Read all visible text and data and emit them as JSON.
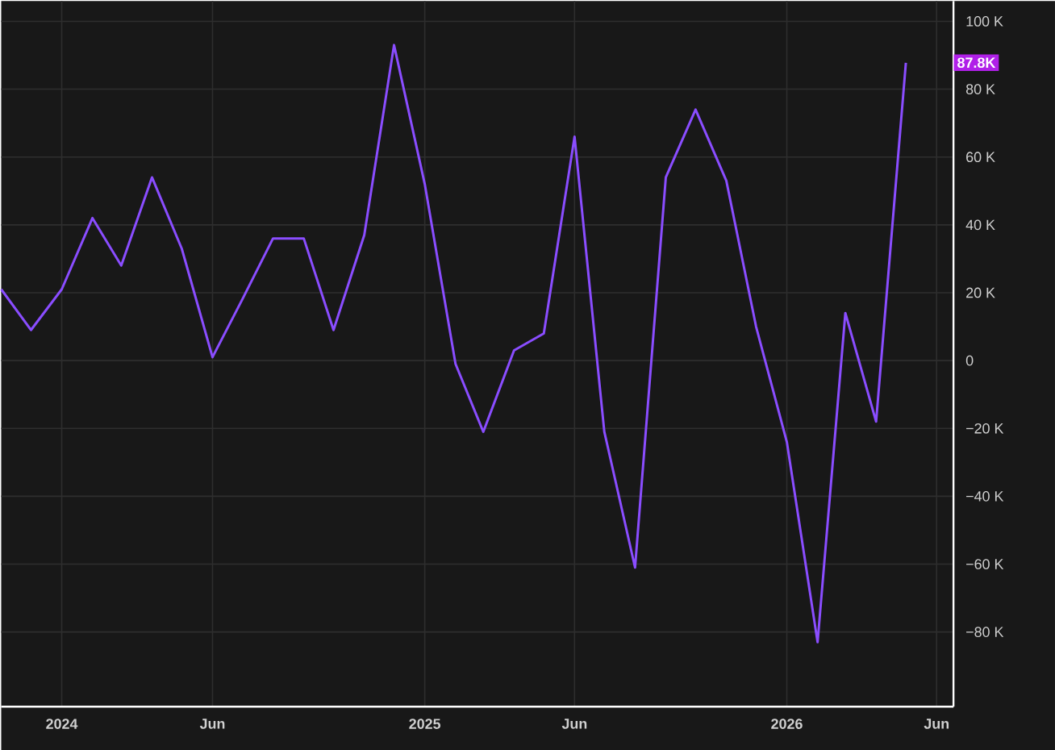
{
  "chart_data": {
    "type": "line",
    "x": [
      "2023-11",
      "2023-12",
      "2024-01",
      "2024-02",
      "2024-03",
      "2024-04",
      "2024-05",
      "2024-06",
      "2024-07",
      "2024-08",
      "2024-09",
      "2024-10",
      "2024-11",
      "2024-12",
      "2025-01",
      "2025-02",
      "2025-03",
      "2025-04",
      "2025-05",
      "2025-06",
      "2025-07",
      "2025-08",
      "2025-09",
      "2025-10",
      "2025-11",
      "2025-12",
      "2026-01",
      "2026-02",
      "2026-03",
      "2026-04",
      "2026-05"
    ],
    "series": [
      {
        "color": "#8a4dff",
        "values": [
          21,
          9,
          21,
          42,
          28,
          54,
          33,
          1,
          18,
          36,
          36,
          9,
          37,
          93,
          52,
          -1,
          -21,
          3,
          8,
          66,
          -21,
          -61,
          54,
          74,
          53,
          10,
          -24,
          -83,
          14,
          -18,
          87.8
        ]
      }
    ],
    "xlim": [
      "2023-11-01",
      "2026-06-18"
    ],
    "xticks": [
      {
        "value": "2024-01",
        "label": "2024"
      },
      {
        "value": "2024-06",
        "label": "Jun"
      },
      {
        "value": "2025-01",
        "label": "2025"
      },
      {
        "value": "2025-06",
        "label": "Jun"
      },
      {
        "value": "2026-01",
        "label": "2026"
      },
      {
        "value": "2026-06",
        "label": "Jun"
      }
    ],
    "ylim": [
      -102,
      106
    ],
    "yticks": [
      {
        "value": -80,
        "label": "−80 K"
      },
      {
        "value": -60,
        "label": "−60 K"
      },
      {
        "value": -40,
        "label": "−40 K"
      },
      {
        "value": -20,
        "label": "−20 K"
      },
      {
        "value": 0,
        "label": "0"
      },
      {
        "value": 20,
        "label": "20 K"
      },
      {
        "value": 40,
        "label": "40 K"
      },
      {
        "value": 60,
        "label": "60 K"
      },
      {
        "value": 80,
        "label": "80 K"
      },
      {
        "value": 100,
        "label": "100 K"
      }
    ],
    "grid": true,
    "annotations": [
      "87.8K"
    ]
  }
}
